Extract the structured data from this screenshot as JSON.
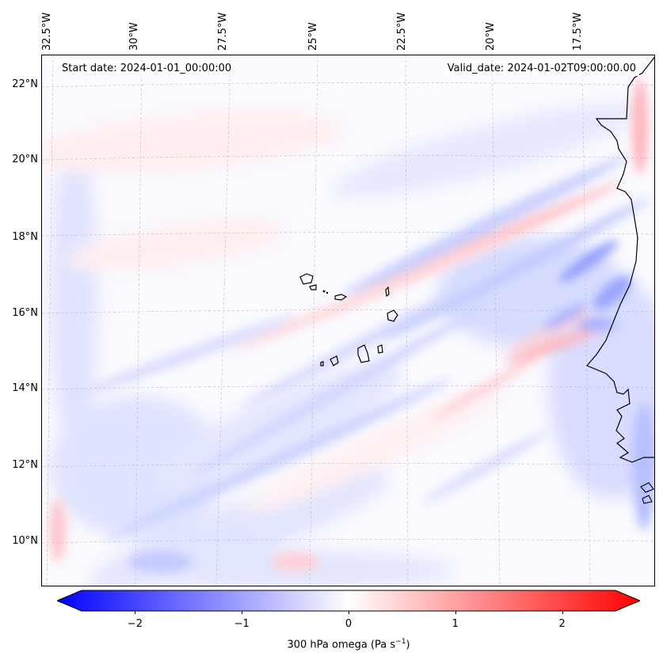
{
  "map": {
    "start_label": "Start date: 2024-01-01_00:00:00",
    "valid_label": "Valid_date: 2024-01-02T09:00:00.00",
    "longitude_labels": [
      "32.5°W",
      "30°W",
      "27.5°W",
      "25°W",
      "22.5°W",
      "20°W",
      "17.5°W"
    ],
    "latitude_labels": [
      "22°N",
      "20°N",
      "18°N",
      "16°N",
      "14°N",
      "12°N",
      "10°N"
    ],
    "field": "omega",
    "colormap": "bwr",
    "colors": {
      "negative": "#0000ff",
      "zero": "#ffffff",
      "positive": "#ff0000",
      "coast": "#000000"
    }
  },
  "colorbar": {
    "ticks": [
      "−2",
      "−1",
      "0",
      "1",
      "2"
    ],
    "tick_values": [
      -2,
      -1,
      0,
      1,
      2
    ],
    "range": [
      -2.5,
      2.5
    ],
    "label_main": "300 hPa omega (Pa s",
    "label_sup": "−1",
    "label_end": ")"
  }
}
